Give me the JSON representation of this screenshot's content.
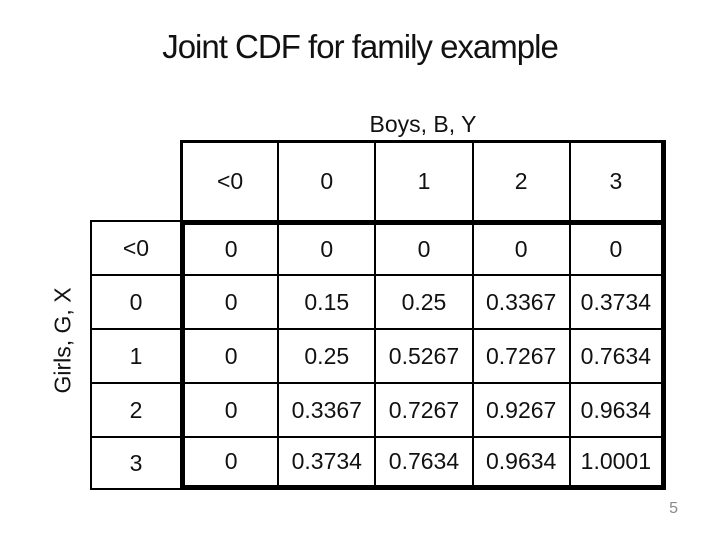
{
  "slide": {
    "title": "Joint CDF for family example",
    "page_number": "5"
  },
  "table": {
    "column_axis_label": "Boys, B, Y",
    "row_axis_label": "Girls, G, X",
    "column_headers": [
      "<0",
      "0",
      "1",
      "2",
      "3"
    ],
    "rows": [
      {
        "header": "<0",
        "cells": [
          "0",
          "0",
          "0",
          "0",
          "0"
        ]
      },
      {
        "header": "0",
        "cells": [
          "0",
          "0.15",
          "0.25",
          "0.3367",
          "0.3734"
        ]
      },
      {
        "header": "1",
        "cells": [
          "0",
          "0.25",
          "0.5267",
          "0.7267",
          "0.7634"
        ]
      },
      {
        "header": "2",
        "cells": [
          "0",
          "0.3367",
          "0.7267",
          "0.9267",
          "0.9634"
        ]
      },
      {
        "header": "3",
        "cells": [
          "0",
          "0.3734",
          "0.7634",
          "0.9634",
          "1.0001"
        ]
      }
    ]
  },
  "colors": {
    "background": "#ffffff",
    "grid_line": "#000000",
    "text": "#111111",
    "page_number": "#8a8a8a"
  }
}
